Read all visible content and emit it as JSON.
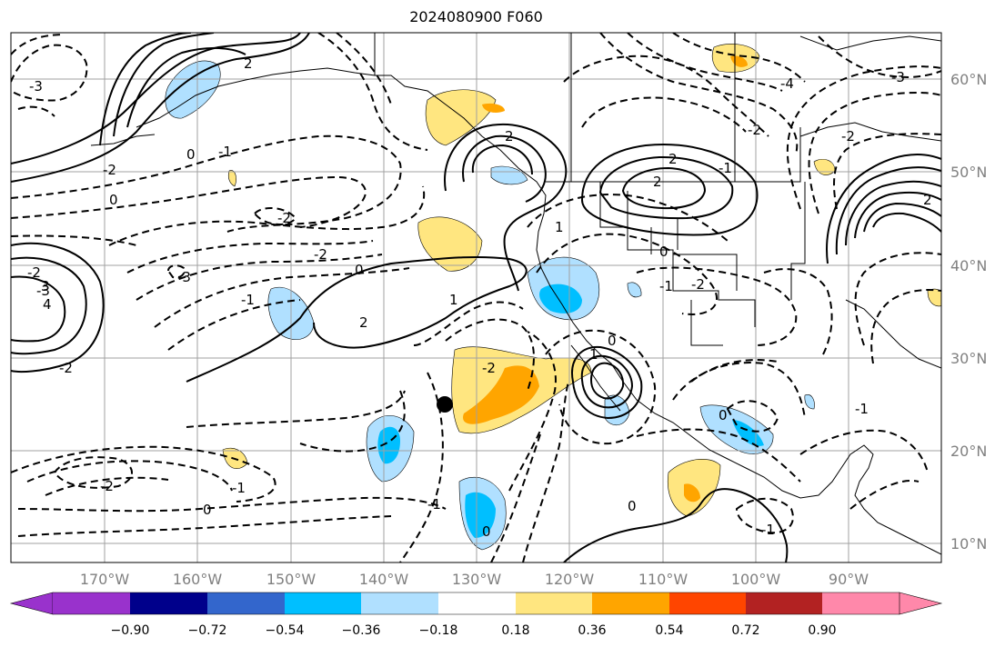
{
  "title": "2024080900 F060",
  "lon_labels": [
    "170°W",
    "160°W",
    "150°W",
    "140°W",
    "130°W",
    "120°W",
    "110°W",
    "100°W",
    "90°W"
  ],
  "lat_labels": [
    "60°N",
    "50°N",
    "40°N",
    "30°N",
    "20°N",
    "10°N"
  ],
  "colorbar": {
    "ticks": [
      "−0.90",
      "−0.72",
      "−0.54",
      "−0.36",
      "−0.18",
      "0.18",
      "0.36",
      "0.54",
      "0.72",
      "0.90"
    ],
    "colors": [
      "#9932cc",
      "#00008b",
      "#3366cc",
      "#00bfff",
      "#b0e0ff",
      "#ffffff",
      "#ffe680",
      "#ffa500",
      "#ff4500",
      "#b22222",
      "#ff88aa"
    ]
  },
  "contour_labels": [
    "-2",
    "-3",
    "-2",
    "-1",
    "0",
    "2",
    "-2",
    "-3",
    "-4",
    "-2",
    "-1",
    "2",
    "0",
    "-1",
    "-2",
    "-3",
    "0",
    "1",
    "2",
    "-1",
    "0",
    "1",
    "2",
    "-2",
    "-1",
    "0",
    "-1",
    "0",
    "-2",
    "-1",
    "0",
    "-3",
    "4",
    "-2",
    "3",
    "-2",
    "2",
    "0",
    "1",
    "-1",
    "-2",
    "0",
    "2"
  ],
  "marker": "storm-center"
}
